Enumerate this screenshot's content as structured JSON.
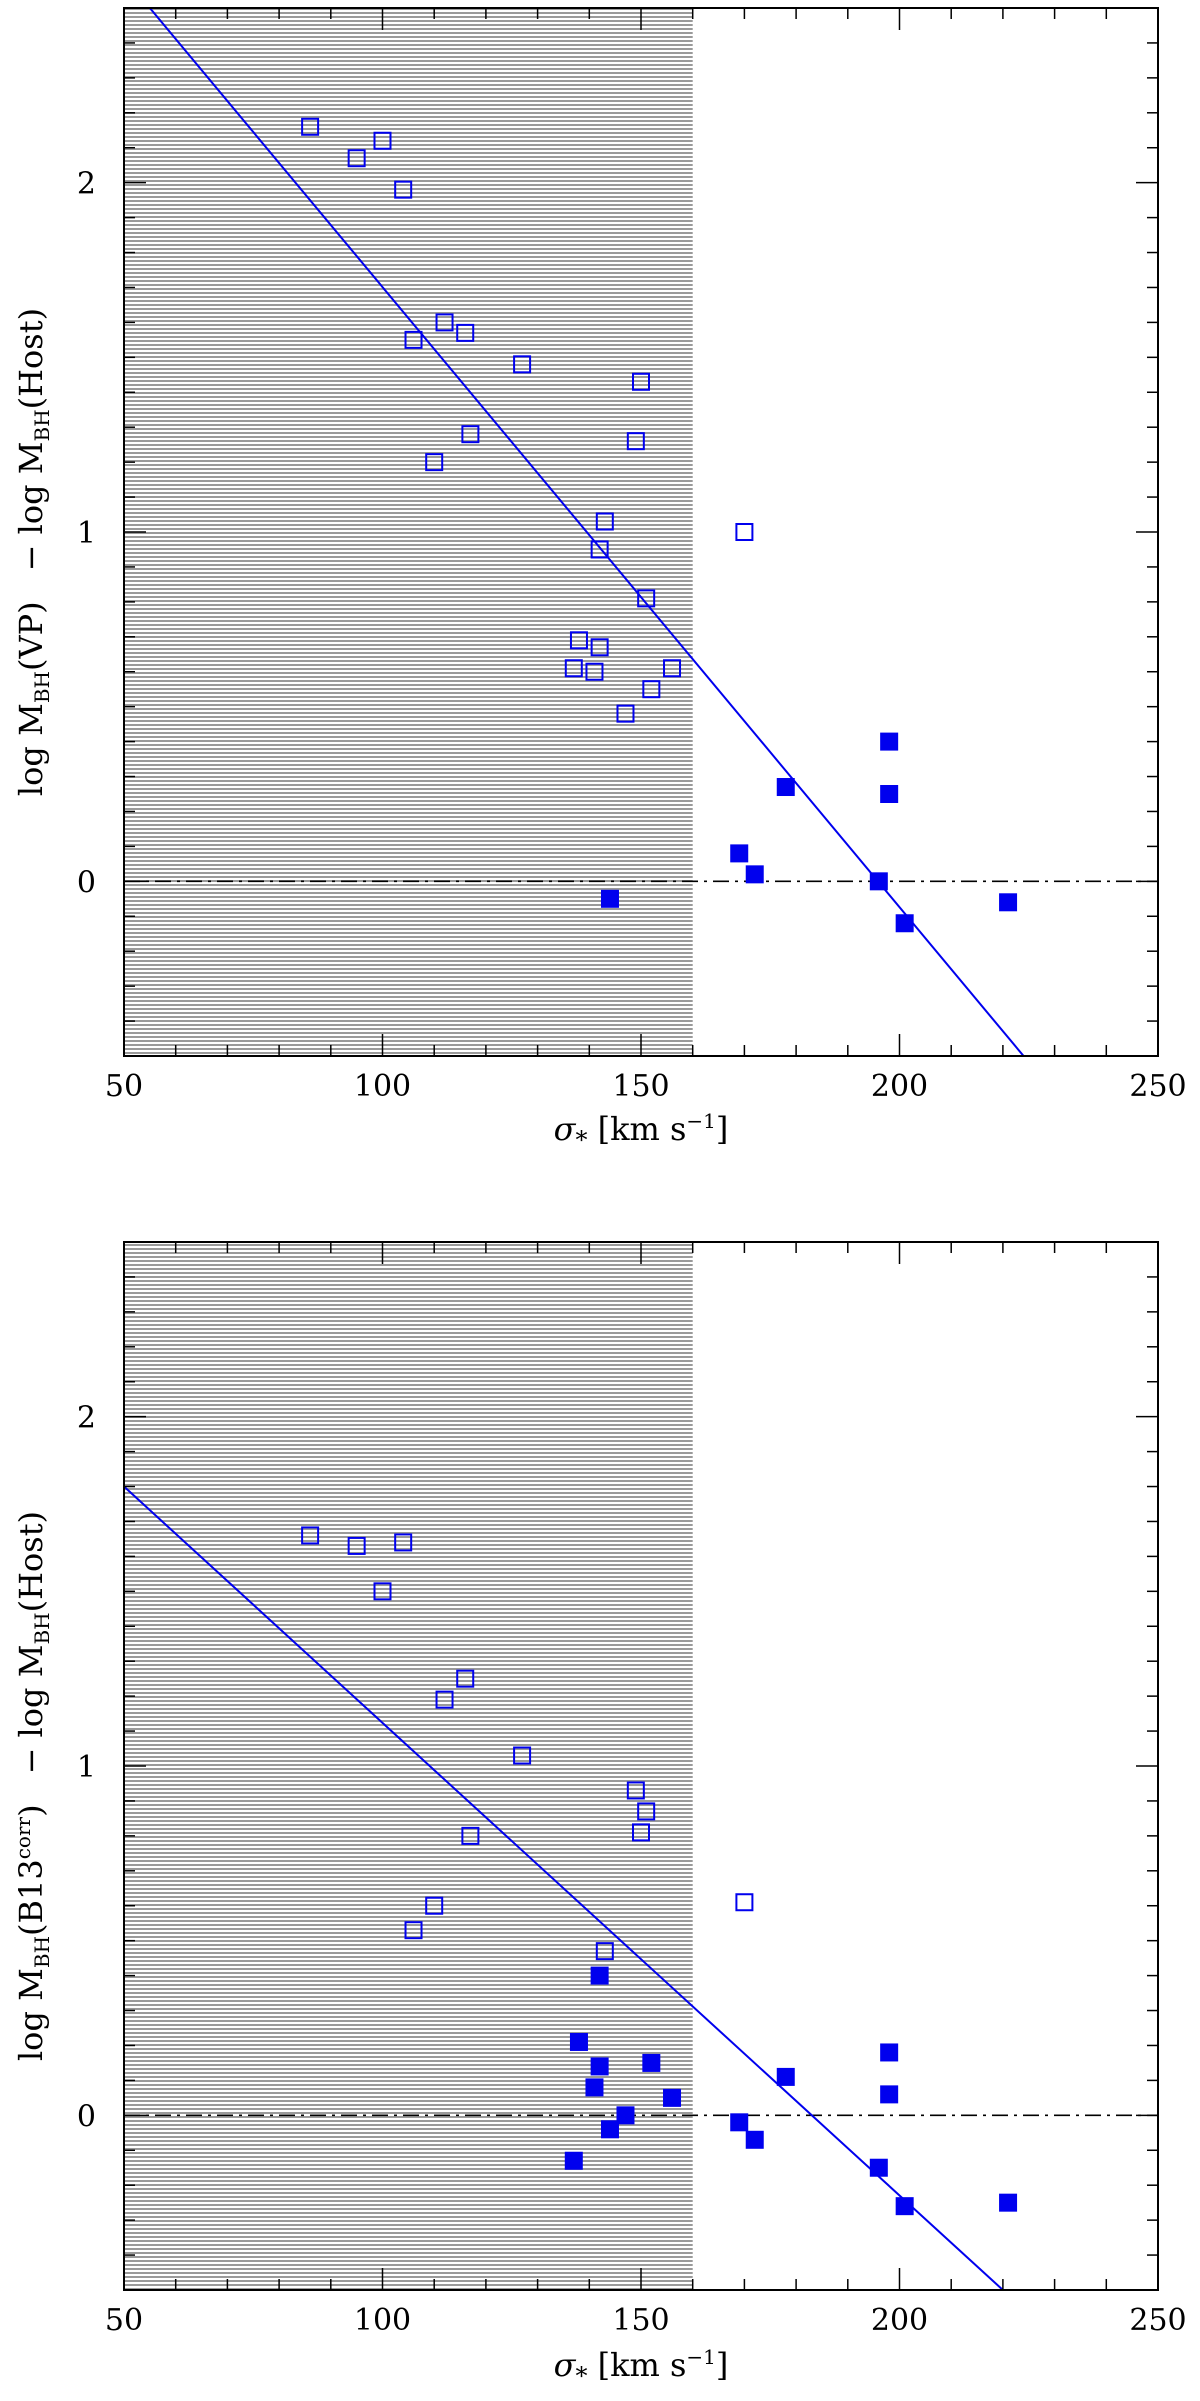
{
  "colors": {
    "marker": "#0000ee",
    "shade": "#9a9a9a",
    "axis": "#000000"
  },
  "chart_data": [
    {
      "type": "scatter",
      "panel": "top",
      "xlabel": "σ* [km s⁻¹]",
      "xlabel_symbol": "σ",
      "xlabel_sub": "*",
      "xlabel_unit": "[km s",
      "xlabel_sup": "−1",
      "xlabel_close": "]",
      "ylabel": "log M_BH(VP) − log M_BH(Host)",
      "ylabel_left": "log M",
      "ylabel_left_sub": "BH",
      "ylabel_left_arg": "(VP)",
      "ylabel_left_sup": "",
      "ylabel_right": "− log M",
      "ylabel_right_sub": "BH",
      "ylabel_right_arg": "(Host)",
      "xlim": [
        50,
        250
      ],
      "ylim": [
        -0.5,
        2.5
      ],
      "xticks": [
        50,
        100,
        150,
        200,
        250
      ],
      "xtick_labels": [
        "50",
        "100",
        "150",
        "200",
        "250"
      ],
      "yticks": [
        0,
        1,
        2
      ],
      "ytick_labels": [
        "0",
        "1",
        "2"
      ],
      "shaded_region": [
        50,
        160
      ],
      "reference_line_y": 0,
      "fit_line": {
        "x": [
          55,
          224
        ],
        "y": [
          2.5,
          -0.5
        ]
      },
      "series": [
        {
          "name": "open squares",
          "filled": false,
          "points": [
            [
              86,
              2.16
            ],
            [
              95,
              2.07
            ],
            [
              100,
              2.12
            ],
            [
              104,
              1.98
            ],
            [
              106,
              1.55
            ],
            [
              112,
              1.6
            ],
            [
              116,
              1.57
            ],
            [
              110,
              1.2
            ],
            [
              117,
              1.28
            ],
            [
              127,
              1.48
            ],
            [
              150,
              1.43
            ],
            [
              149,
              1.26
            ],
            [
              143,
              1.03
            ],
            [
              142,
              0.95
            ],
            [
              151,
              0.81
            ],
            [
              138,
              0.69
            ],
            [
              142,
              0.67
            ],
            [
              137,
              0.61
            ],
            [
              141,
              0.6
            ],
            [
              156,
              0.61
            ],
            [
              152,
              0.55
            ],
            [
              147,
              0.48
            ],
            [
              170,
              1.0
            ]
          ]
        },
        {
          "name": "filled squares",
          "filled": true,
          "points": [
            [
              198,
              0.4
            ],
            [
              198,
              0.25
            ],
            [
              178,
              0.27
            ],
            [
              169,
              0.08
            ],
            [
              172,
              0.02
            ],
            [
              144,
              -0.05
            ],
            [
              196,
              0.0
            ],
            [
              201,
              -0.12
            ],
            [
              221,
              -0.06
            ]
          ]
        }
      ]
    },
    {
      "type": "scatter",
      "panel": "bottom",
      "xlabel": "σ* [km s⁻¹]",
      "xlabel_symbol": "σ",
      "xlabel_sub": "*",
      "xlabel_unit": "[km s",
      "xlabel_sup": "−1",
      "xlabel_close": "]",
      "ylabel": "log M_BH(B13^corr) − log M_BH(Host)",
      "ylabel_left": "log M",
      "ylabel_left_sub": "BH",
      "ylabel_left_arg": "(B13",
      "ylabel_left_sup": "corr",
      "ylabel_left_arg_close": ")",
      "ylabel_right": "− log M",
      "ylabel_right_sub": "BH",
      "ylabel_right_arg": "(Host)",
      "xlim": [
        50,
        250
      ],
      "ylim": [
        -0.5,
        2.5
      ],
      "xticks": [
        50,
        100,
        150,
        200,
        250
      ],
      "xtick_labels": [
        "50",
        "100",
        "150",
        "200",
        "250"
      ],
      "yticks": [
        0,
        1,
        2
      ],
      "ytick_labels": [
        "0",
        "1",
        "2"
      ],
      "shaded_region": [
        50,
        160
      ],
      "reference_line_y": 0,
      "fit_line": {
        "x": [
          50,
          220
        ],
        "y": [
          1.8,
          -0.5
        ]
      },
      "series": [
        {
          "name": "open squares",
          "filled": false,
          "points": [
            [
              86,
              1.66
            ],
            [
              95,
              1.63
            ],
            [
              104,
              1.64
            ],
            [
              100,
              1.5
            ],
            [
              116,
              1.25
            ],
            [
              112,
              1.19
            ],
            [
              127,
              1.03
            ],
            [
              149,
              0.93
            ],
            [
              151,
              0.87
            ],
            [
              150,
              0.81
            ],
            [
              117,
              0.8
            ],
            [
              110,
              0.6
            ],
            [
              106,
              0.53
            ],
            [
              143,
              0.47
            ],
            [
              170,
              0.61
            ]
          ]
        },
        {
          "name": "filled squares",
          "filled": true,
          "points": [
            [
              142,
              0.4
            ],
            [
              138,
              0.21
            ],
            [
              142,
              0.14
            ],
            [
              152,
              0.15
            ],
            [
              141,
              0.08
            ],
            [
              156,
              0.05
            ],
            [
              147,
              0.0
            ],
            [
              144,
              -0.04
            ],
            [
              137,
              -0.13
            ],
            [
              169,
              -0.02
            ],
            [
              172,
              -0.07
            ],
            [
              178,
              0.11
            ],
            [
              198,
              0.18
            ],
            [
              198,
              0.06
            ],
            [
              196,
              -0.15
            ],
            [
              201,
              -0.26
            ],
            [
              221,
              -0.25
            ]
          ]
        }
      ]
    }
  ]
}
